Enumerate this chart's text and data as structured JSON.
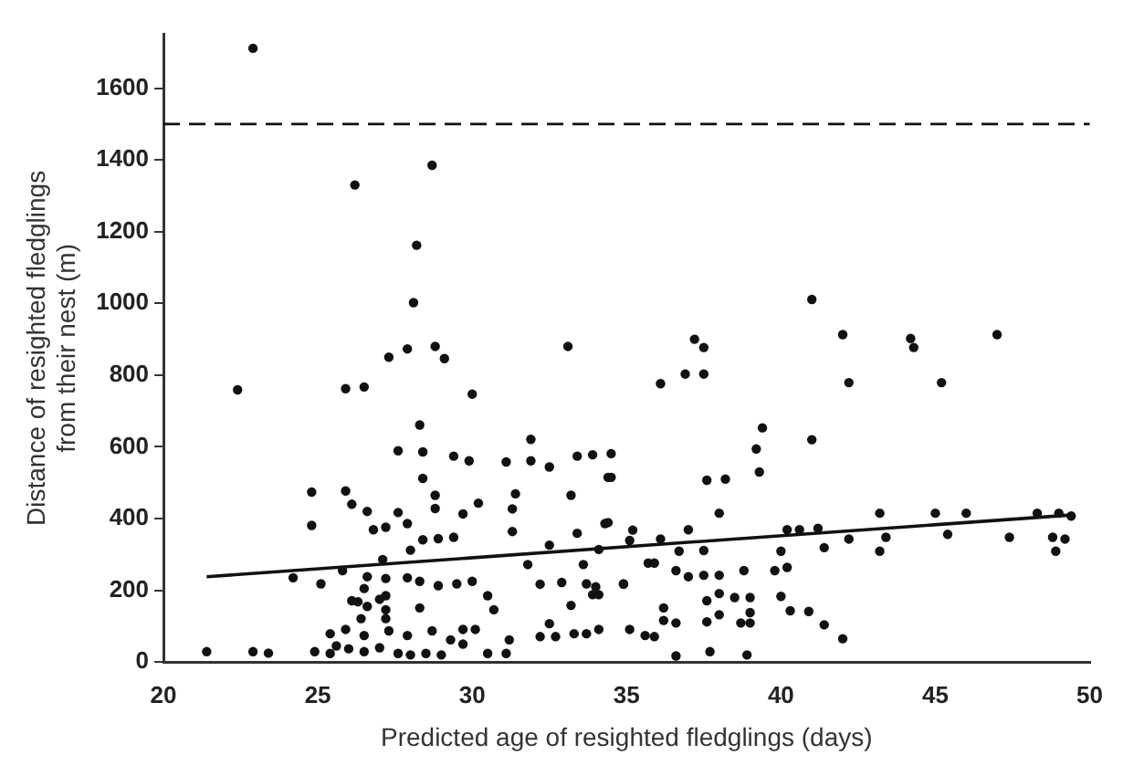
{
  "chart_data": {
    "type": "scatter",
    "xlabel": "Predicted age of resighted fledglings (days)",
    "ylabel": "Distance of resighted fledglings\nfrom their nest (m)",
    "xlim": [
      20,
      50
    ],
    "xticks": [
      20,
      25,
      30,
      35,
      40,
      45,
      50
    ],
    "ylim": [
      0,
      1750
    ],
    "yticks": [
      0,
      200,
      400,
      600,
      800,
      1000,
      1200,
      1400,
      1600
    ],
    "grid": false,
    "legend": false,
    "marker": "circle",
    "series": [
      {
        "type": "scatter",
        "color": "#111111",
        "x": [
          22.9,
          26.2,
          28.7,
          28.2,
          28.1,
          27.3,
          27.9,
          28.8,
          29.1,
          33.1,
          22.4,
          25.9,
          26.5,
          30.0,
          28.3,
          27.6,
          28.4,
          29.4,
          29.9,
          31.1,
          31.9,
          31.9,
          32.5,
          33.4,
          33.9,
          34.4,
          28.4,
          24.8,
          25.9,
          26.1,
          26.6,
          28.8,
          28.8,
          31.4,
          31.3,
          33.2,
          30.2,
          29.7,
          27.6,
          24.8,
          26.8,
          27.2,
          27.9,
          28.4,
          28.9,
          29.4,
          31.3,
          33.4,
          34.3,
          32.5,
          28.0,
          27.1,
          25.8,
          24.2,
          25.1,
          26.6,
          27.2,
          27.9,
          28.3,
          28.9,
          29.5,
          30.0,
          31.8,
          32.2,
          32.9,
          33.7,
          34.0,
          33.6,
          34.1,
          34.9,
          26.5,
          27.2,
          26.1,
          26.3,
          27.0,
          30.5,
          30.7,
          33.2,
          33.9,
          34.1,
          28.3,
          26.6,
          27.2,
          26.4,
          27.2,
          32.5,
          25.4,
          25.9,
          26.5,
          27.3,
          27.9,
          28.7,
          29.3,
          29.7,
          30.1,
          31.2,
          32.2,
          32.7,
          33.3,
          33.7,
          34.1,
          25.6,
          26.0,
          26.5,
          27.0,
          27.6,
          28.0,
          28.5,
          29.0,
          29.7,
          30.5,
          31.1,
          21.4,
          22.9,
          23.4,
          24.9,
          25.4,
          41.0,
          42.0,
          44.2,
          44.3,
          47.0,
          37.2,
          37.5,
          36.1,
          36.9,
          37.5,
          42.2,
          45.2,
          39.4,
          39.2,
          39.3,
          41.0,
          37.6,
          38.2,
          38.0,
          34.5,
          34.5,
          34.4,
          35.2,
          35.1,
          36.1,
          37.0,
          36.7,
          37.5,
          35.7,
          35.9,
          36.6,
          37.0,
          37.5,
          38.0,
          38.8,
          39.8,
          40.2,
          40.0,
          40.2,
          40.6,
          41.2,
          41.4,
          42.2,
          43.2,
          43.2,
          43.4,
          45.0,
          45.4,
          46.0,
          47.4,
          48.3,
          49.0,
          49.4,
          48.8,
          49.2,
          48.9,
          34.9,
          36.2,
          36.2,
          36.6,
          37.6,
          38.0,
          38.0,
          37.6,
          38.5,
          39.0,
          39.0,
          38.7,
          39.0,
          40.0,
          40.3,
          40.9,
          41.4,
          42.0,
          35.1,
          35.6,
          35.9,
          36.6,
          37.7,
          38.9
        ],
        "values": [
          1711,
          1330,
          1385,
          1162,
          1002,
          850,
          873,
          880,
          846,
          880,
          759,
          762,
          767,
          747,
          661,
          589,
          586,
          574,
          561,
          558,
          621,
          561,
          544,
          574,
          578,
          515,
          512,
          474,
          477,
          440,
          420,
          465,
          428,
          469,
          427,
          465,
          443,
          413,
          417,
          381,
          369,
          376,
          386,
          341,
          344,
          348,
          364,
          359,
          386,
          326,
          312,
          286,
          255,
          235,
          218,
          238,
          233,
          235,
          225,
          213,
          218,
          225,
          272,
          217,
          222,
          218,
          210,
          272,
          314,
          218,
          205,
          185,
          171,
          168,
          175,
          185,
          146,
          158,
          188,
          188,
          151,
          155,
          146,
          121,
          121,
          107,
          79,
          91,
          74,
          87,
          74,
          87,
          62,
          91,
          91,
          62,
          71,
          71,
          79,
          79,
          91,
          45,
          37,
          29,
          40,
          24,
          20,
          24,
          20,
          50,
          24,
          24,
          29,
          29,
          25,
          29,
          24,
          1011,
          913,
          902,
          877,
          913,
          900,
          877,
          776,
          803,
          803,
          779,
          779,
          653,
          594,
          530,
          620,
          507,
          510,
          415,
          581,
          515,
          389,
          368,
          339,
          343,
          369,
          309,
          311,
          276,
          276,
          255,
          238,
          242,
          242,
          255,
          255,
          264,
          309,
          369,
          369,
          373,
          319,
          343,
          415,
          309,
          348,
          415,
          356,
          415,
          348,
          415,
          415,
          407,
          348,
          343,
          309,
          217,
          151,
          116,
          109,
          171,
          191,
          132,
          112,
          180,
          180,
          138,
          109,
          109,
          183,
          143,
          141,
          104,
          65,
          91,
          74,
          71,
          17,
          29,
          20
        ]
      },
      {
        "type": "line",
        "color": "#111111",
        "line_style": "solid",
        "marker": "none",
        "x": [
          21.4,
          49.4
        ],
        "values": [
          238,
          410
        ]
      }
    ],
    "ref_lines": [
      {
        "axis": "y",
        "value": 1500,
        "color": "#111111",
        "line_style": "dashed"
      }
    ]
  }
}
